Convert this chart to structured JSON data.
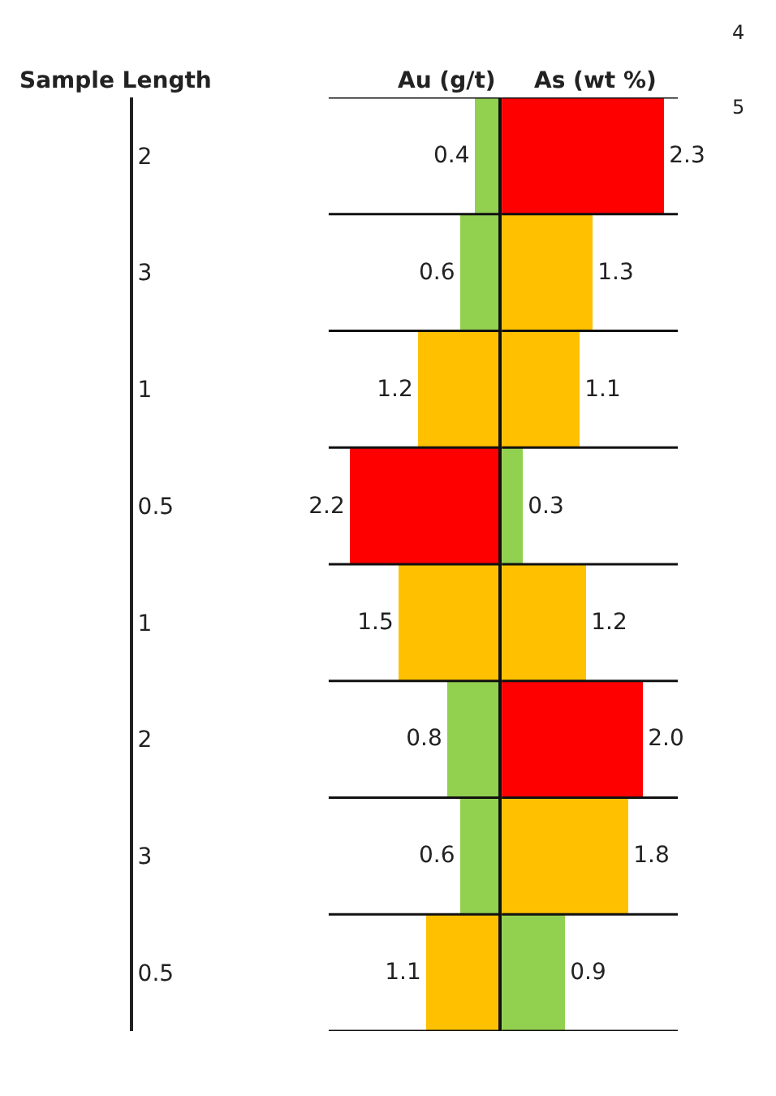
{
  "chart_data": [
    {
      "type": "bar",
      "orientation": "horizontal",
      "title": "Au (g/t)",
      "ylabel": "Sample Length",
      "categories": [
        "2",
        "3",
        "1",
        "0.5",
        "1",
        "2",
        "3",
        "0.5"
      ],
      "values": [
        0.4,
        0.6,
        1.2,
        2.2,
        1.5,
        0.8,
        0.6,
        1.1
      ],
      "colors": [
        "#92d050",
        "#92d050",
        "#ffc000",
        "#ff0000",
        "#ffc000",
        "#92d050",
        "#92d050",
        "#ffc000"
      ],
      "xlim": [
        2.5,
        0
      ],
      "value_labels": [
        "0.4",
        "0.6",
        "1.2",
        "2.2",
        "1.5",
        "0.8",
        "0.6",
        "1.1"
      ],
      "tick_labels": "y"
    },
    {
      "type": "bar",
      "orientation": "horizontal",
      "title": "As (wt %)",
      "categories": [
        "2",
        "3",
        "1",
        "0.5",
        "1",
        "2",
        "3",
        "0.5"
      ],
      "values": [
        2.3,
        1.3,
        1.1,
        0.3,
        1.2,
        2.0,
        1.8,
        0.9
      ],
      "colors": [
        "#ff0000",
        "#ffc000",
        "#ffc000",
        "#92d050",
        "#ffc000",
        "#ff0000",
        "#ffc000",
        "#92d050"
      ],
      "xlim": [
        0,
        2.5
      ],
      "value_labels": [
        "2.3",
        "1.3",
        "1.1",
        "0.3",
        "1.2",
        "2.0",
        "1.8",
        "0.9"
      ],
      "tick_labels": false,
      "annotations": [
        "4",
        "5"
      ]
    }
  ]
}
